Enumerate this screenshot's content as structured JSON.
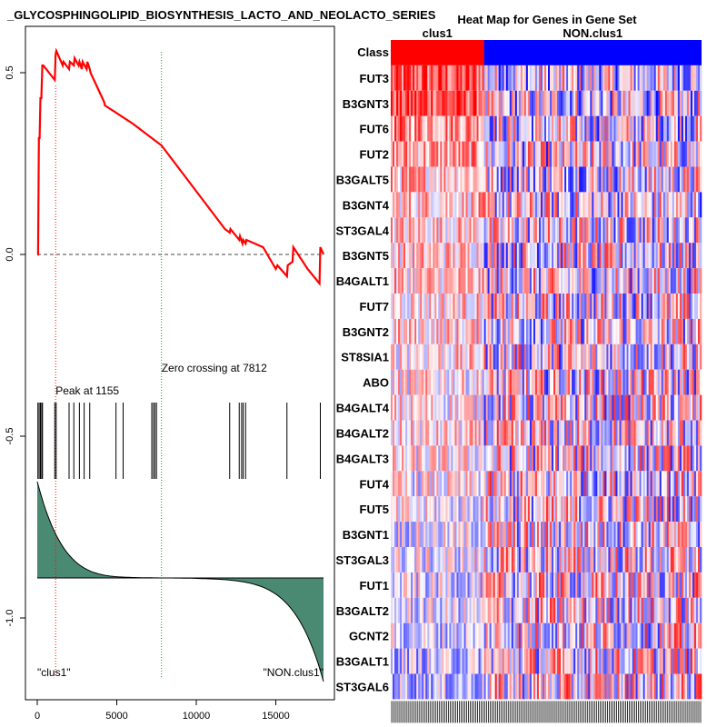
{
  "chart_data": [
    {
      "type": "line",
      "title": "_GLYCOSPHINGOLIPID_BIOSYNTHESIS_LACTO_AND_NEOLACTO_SERIES",
      "xlim": [
        0,
        18000
      ],
      "ylim": [
        -1.2,
        0.6
      ],
      "x_ticks": [
        0,
        5000,
        10000,
        15000
      ],
      "y_ticks": [
        0.5,
        0.0,
        -0.5,
        -1.0
      ],
      "x_tick_labels": [
        "0",
        "5000",
        "10000",
        "15000"
      ],
      "y_tick_labels": [
        "0.5",
        "0.0",
        "-0.5",
        "-1.0"
      ],
      "running_enrichment_score": {
        "x": [
          0,
          50,
          100,
          150,
          200,
          260,
          320,
          380,
          1100,
          1155,
          1200,
          1600,
          1650,
          2000,
          2050,
          2300,
          2350,
          2600,
          2650,
          2800,
          2850,
          3100,
          3150,
          3300,
          3350,
          4200,
          4250,
          6000,
          7812,
          11800,
          12100,
          12150,
          12700,
          12750,
          12900,
          12950,
          13100,
          13150,
          14200,
          15000,
          15100,
          15700,
          15750,
          16050,
          16100,
          17000,
          17750,
          17800,
          18000
        ],
        "y": [
          0.0,
          0.0,
          0.32,
          0.32,
          0.43,
          0.43,
          0.52,
          0.52,
          0.48,
          0.55,
          0.56,
          0.52,
          0.53,
          0.51,
          0.53,
          0.52,
          0.54,
          0.52,
          0.53,
          0.51,
          0.53,
          0.51,
          0.53,
          0.51,
          0.5,
          0.42,
          0.41,
          0.36,
          0.3,
          0.07,
          0.06,
          0.07,
          0.04,
          0.05,
          0.03,
          0.04,
          0.03,
          0.04,
          0.02,
          -0.04,
          -0.03,
          -0.06,
          -0.03,
          -0.02,
          0.02,
          -0.04,
          -0.08,
          0.02,
          0.0
        ]
      },
      "hit_positions": [
        40,
        120,
        200,
        280,
        330,
        1100,
        1190,
        2000,
        2300,
        2650,
        2950,
        3300,
        4950,
        5400,
        7200,
        7300,
        7400,
        7500,
        12100,
        12700,
        12850,
        12950,
        13100,
        15700,
        17800
      ],
      "ranked_metric": {
        "start": -0.63,
        "crossing_x": 7812,
        "baseline": -0.89,
        "end": -1.15
      },
      "peak": {
        "x": 1155,
        "label": "Peak at 1155"
      },
      "zero_crossing": {
        "x": 7812,
        "label": "Zero crossing at 7812"
      },
      "left_class_label": "\"clus1\"",
      "right_class_label": "\"NON.clus1\""
    },
    {
      "type": "heatmap",
      "title": "Heat Map for Genes in Gene Set",
      "class_row_label": "Class",
      "classes": [
        {
          "name": "clus1",
          "color": "#ff0000",
          "fraction": 0.3
        },
        {
          "name": "NON.clus1",
          "color": "#0000ff",
          "fraction": 0.7
        }
      ],
      "genes": [
        "FUT3",
        "B3GNT3",
        "FUT6",
        "FUT2",
        "B3GALT5",
        "B3GNT4",
        "ST3GAL4",
        "B3GNT5",
        "B4GALT1",
        "FUT7",
        "B3GNT2",
        "ST8SIA1",
        "ABO",
        "B4GALT4",
        "B4GALT2",
        "B4GALT3",
        "FUT4",
        "FUT5",
        "B3GNT1",
        "ST3GAL3",
        "FUT1",
        "B3GALT2",
        "GCNT2",
        "B3GALT1",
        "ST3GAL6"
      ],
      "clus1_row_bias": [
        0.8,
        0.9,
        0.6,
        0.45,
        0.35,
        0.3,
        0.25,
        0.25,
        0.25,
        0.2,
        0.2,
        0.15,
        0.1,
        0.1,
        0.1,
        0.05,
        0.0,
        -0.05,
        -0.1,
        -0.1,
        -0.15,
        -0.15,
        -0.2,
        -0.25,
        -0.3
      ],
      "colors": {
        "high": "#ff0000",
        "mid": "#ffffff",
        "low": "#0000ff"
      }
    }
  ],
  "colors": {
    "es_line": "#ff0000",
    "peak_line": "#ff0000",
    "zero_line": "#00aa00",
    "metric_fill": "#4a8a72",
    "hits": "#000000"
  }
}
